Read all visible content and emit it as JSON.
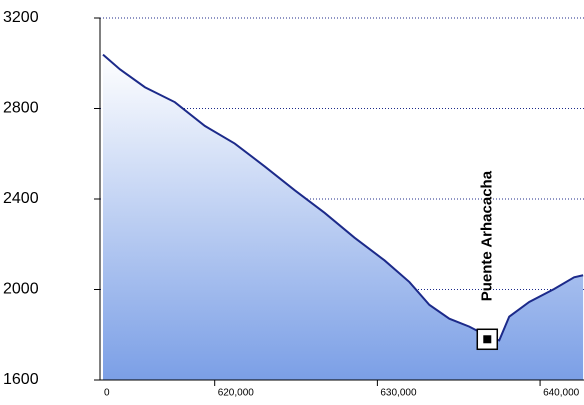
{
  "chart_data": {
    "type": "line",
    "x": [
      613134,
      614177,
      615711,
      617551,
      619392,
      621232,
      623073,
      624913,
      626754,
      628594,
      630435,
      631969,
      633196,
      634423,
      635650,
      636877,
      637490,
      638104,
      639331,
      640865,
      642092,
      642645
    ],
    "series": [
      {
        "color": "#1c2a8a",
        "values": [
          3038,
          2973,
          2894,
          2828,
          2723,
          2645,
          2544,
          2439,
          2339,
          2229,
          2129,
          2033,
          1932,
          1871,
          1836,
          1790,
          1775,
          1880,
          1945,
          2002,
          2054,
          2063
        ]
      }
    ],
    "xlim": [
      612950,
      642700
    ],
    "ylim": [
      1600,
      3200
    ],
    "xticks": [
      {
        "value": 620000,
        "label": "620,000"
      },
      {
        "value": 630000,
        "label": "630,000"
      },
      {
        "value": 640000,
        "label": "640,000"
      }
    ],
    "x_start_label": "0",
    "yticks": [
      1600,
      2000,
      2400,
      2800,
      3200
    ],
    "grid": true,
    "marker": {
      "label": "Puente Arhacacha",
      "x": 636755,
      "y": 1780
    }
  }
}
